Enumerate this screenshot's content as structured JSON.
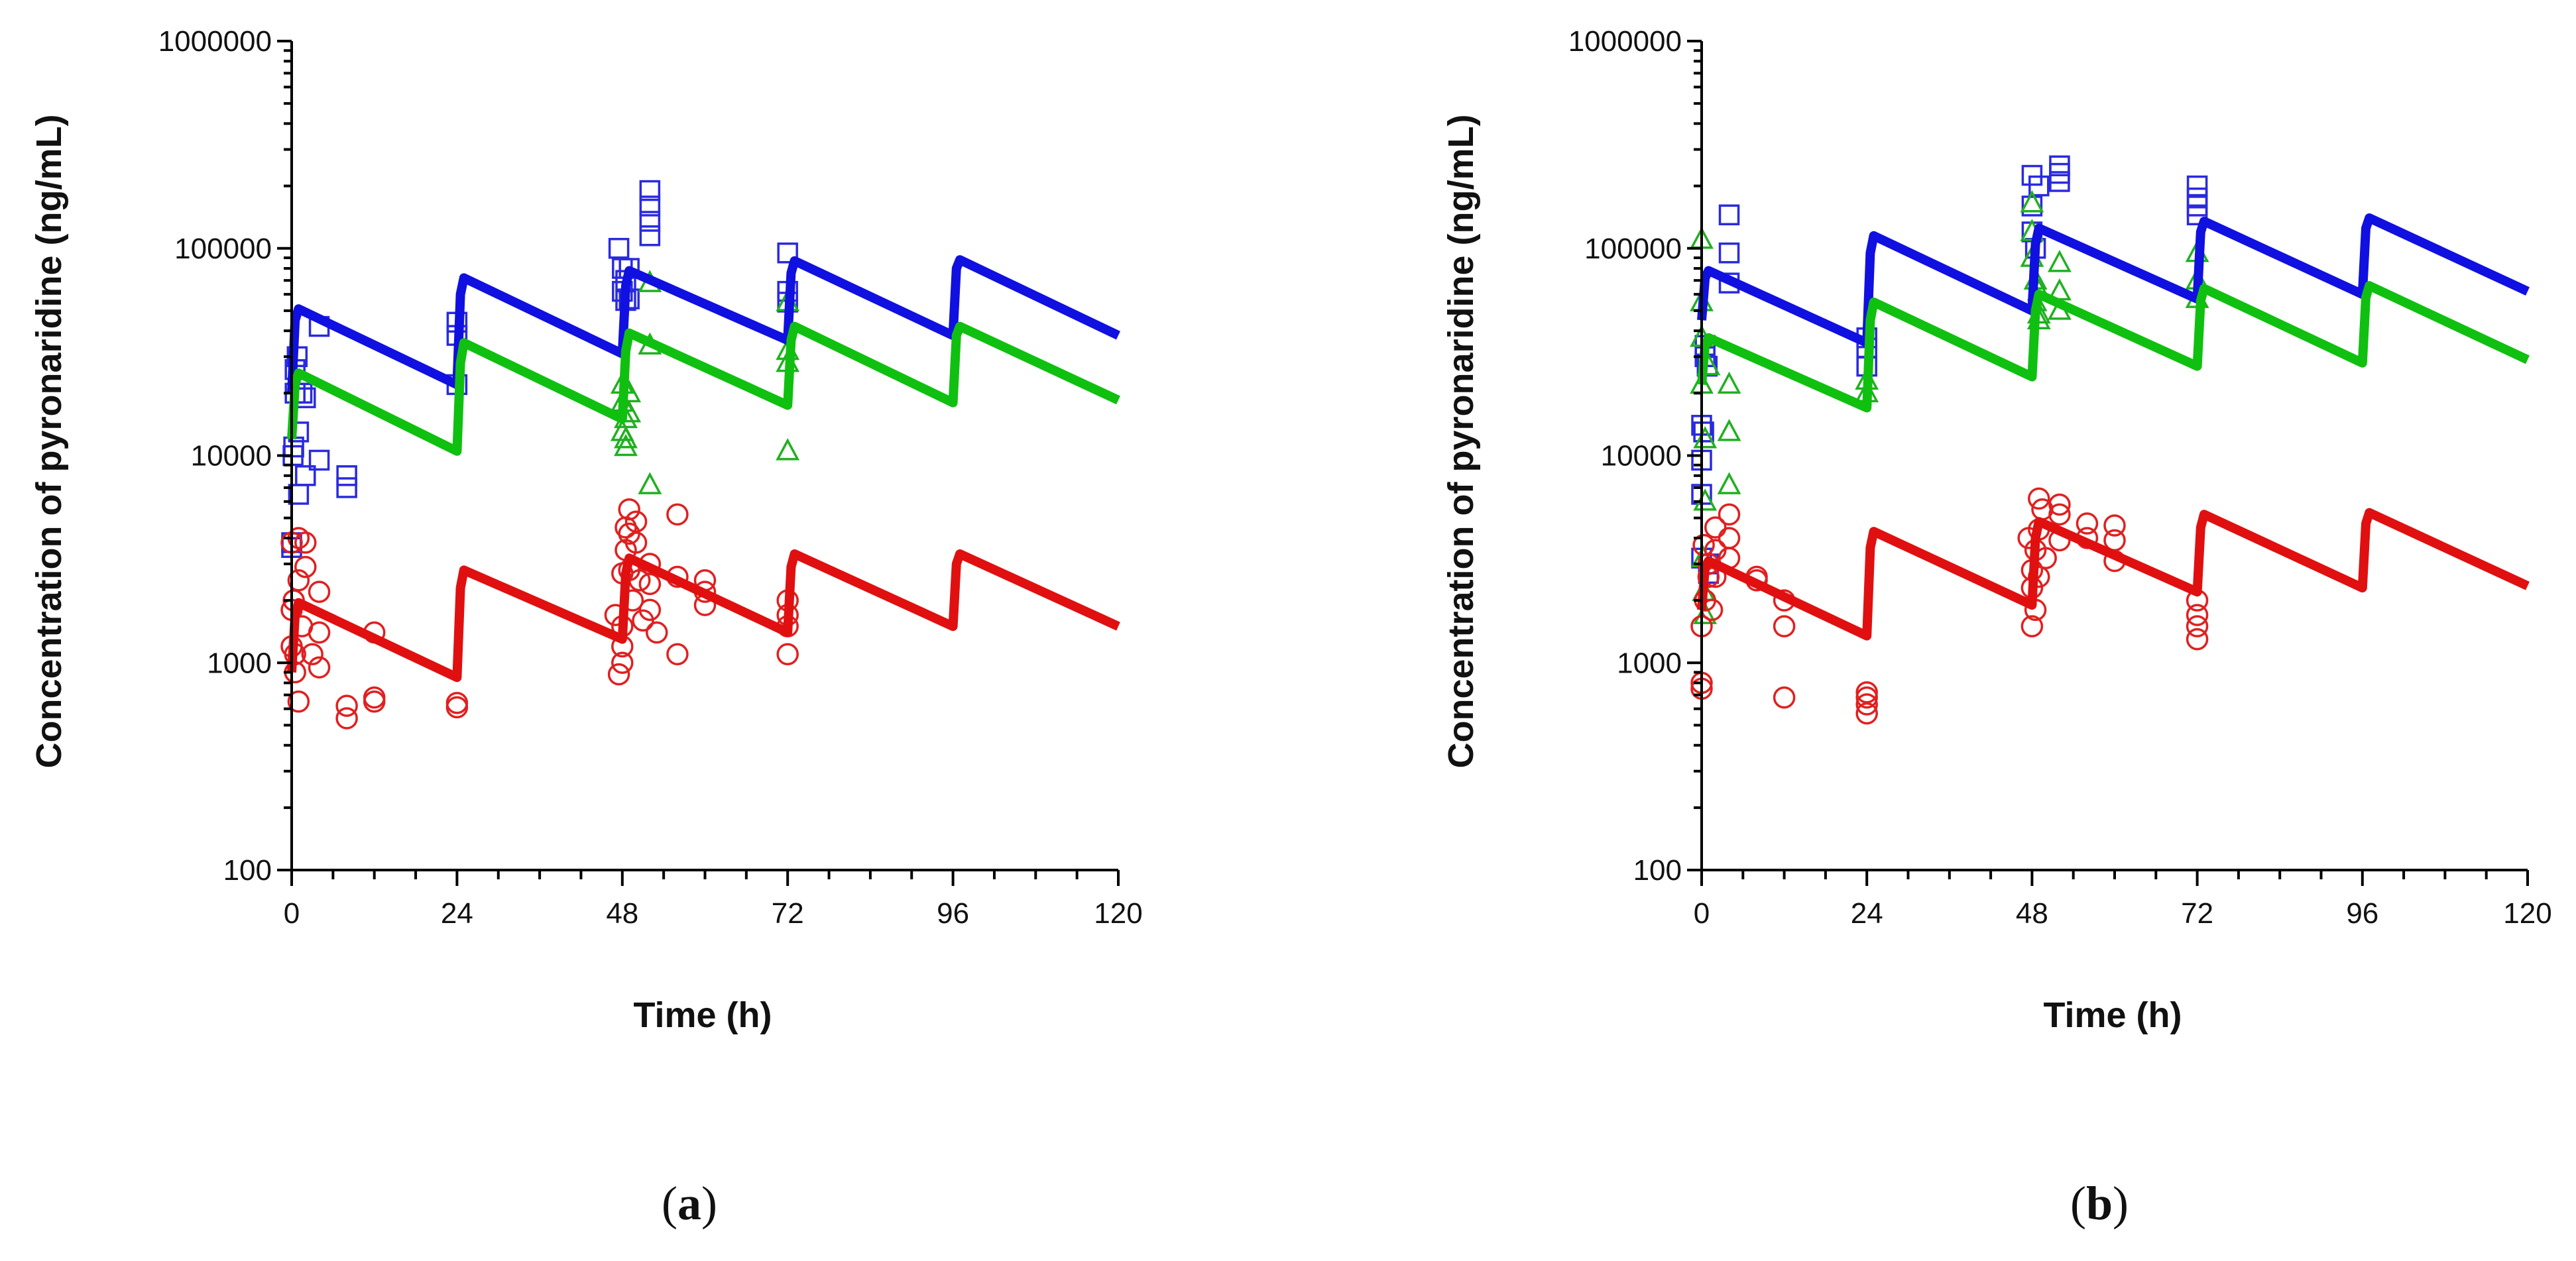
{
  "chart_data": [
    {
      "type": "line",
      "panel_label": "a",
      "xlabel": "Time (h)",
      "ylabel": "Concentration of pyronaridine (ng/mL)",
      "xlim": [
        0,
        120
      ],
      "ylim": [
        100,
        1000000
      ],
      "yscale": "log",
      "x_ticks": [
        0,
        24,
        48,
        72,
        96,
        120
      ],
      "x_tick_labels": [
        "0",
        "24",
        "48",
        "72",
        "96",
        "120"
      ],
      "x_minor_ticks": [
        6,
        12,
        18,
        30,
        36,
        42,
        54,
        60,
        66,
        78,
        84,
        90,
        102,
        108,
        114
      ],
      "y_ticks": [
        100,
        1000,
        10000,
        100000,
        1000000
      ],
      "y_tick_labels": [
        "100",
        "1000",
        "10000",
        "100000",
        "1000000"
      ],
      "series": [
        {
          "name": "upper",
          "kind": "line",
          "color": "#1010e0",
          "x": [
            0,
            0.5,
            1,
            24,
            24.5,
            25,
            48,
            48.5,
            49,
            72,
            72.5,
            73,
            96,
            96.5,
            97,
            120
          ],
          "y": [
            20000,
            45000,
            51000,
            22000,
            60000,
            72000,
            31000,
            66000,
            78000,
            36000,
            76000,
            87000,
            38000,
            80000,
            88000,
            38000
          ]
        },
        {
          "name": "middle",
          "kind": "line",
          "color": "#10c010",
          "x": [
            0,
            0.5,
            1,
            24,
            24.5,
            25,
            48,
            48.5,
            49,
            72,
            72.5,
            73,
            96,
            96.5,
            97,
            120
          ],
          "y": [
            12000,
            22000,
            25000,
            10500,
            28000,
            35000,
            15000,
            32000,
            39000,
            17500,
            36000,
            42000,
            18000,
            38000,
            42000,
            18500
          ]
        },
        {
          "name": "lower",
          "kind": "line",
          "color": "#e01010",
          "x": [
            0,
            0.5,
            1,
            24,
            24.5,
            25,
            48,
            48.5,
            49,
            72,
            72.5,
            73,
            96,
            96.5,
            97,
            120
          ],
          "y": [
            900,
            1700,
            1950,
            850,
            2300,
            2800,
            1300,
            2700,
            3200,
            1400,
            2900,
            3350,
            1500,
            3000,
            3350,
            1500
          ]
        },
        {
          "name": "upper-observed",
          "kind": "square",
          "color": "#2a2ae0",
          "x": [
            0,
            0,
            0.2,
            0.3,
            0.5,
            0.5,
            0.8,
            1,
            1,
            1.5,
            2,
            2,
            4,
            4,
            8,
            8,
            24,
            24,
            24,
            47.5,
            48,
            48,
            48.5,
            48.5,
            49,
            49,
            52,
            52,
            52,
            52,
            72,
            72,
            72
          ],
          "y": [
            3800,
            3600,
            10000,
            11000,
            20000,
            26000,
            30000,
            6500,
            13000,
            20000,
            19000,
            8000,
            42000,
            9500,
            8000,
            7000,
            22000,
            38000,
            44000,
            100000,
            80000,
            62000,
            56000,
            70000,
            80000,
            57000,
            190000,
            160000,
            135000,
            115000,
            95000,
            62000,
            55000
          ]
        },
        {
          "name": "middle-observed",
          "kind": "triangle",
          "color": "#20b020",
          "x": [
            48,
            48,
            48,
            48.5,
            48.5,
            48.5,
            49,
            49,
            52,
            52,
            52,
            72,
            72,
            72,
            72
          ],
          "y": [
            22000,
            18000,
            13000,
            12000,
            15000,
            11000,
            20000,
            16000,
            68000,
            34000,
            7200,
            55000,
            32000,
            28000,
            10500
          ]
        },
        {
          "name": "lower-observed",
          "kind": "circle",
          "color": "#e02020",
          "x": [
            0,
            0,
            0,
            0.3,
            0.5,
            0.5,
            1,
            1,
            1,
            1.5,
            2,
            2,
            3,
            4,
            4,
            4,
            8,
            8,
            12,
            12,
            12,
            24,
            24,
            47,
            47.5,
            48,
            48,
            48,
            48,
            48.5,
            48.5,
            49,
            49,
            49,
            49.5,
            50,
            50,
            50.5,
            51,
            52,
            52,
            52,
            53,
            56,
            56,
            56,
            60,
            60,
            60,
            72,
            72,
            72,
            72
          ],
          "y": [
            3800,
            1800,
            1200,
            2000,
            1100,
            900,
            650,
            4000,
            2500,
            1500,
            3800,
            2900,
            1100,
            2200,
            1400,
            950,
            620,
            540,
            1400,
            680,
            650,
            640,
            610,
            1700,
            880,
            1500,
            1200,
            1000,
            2700,
            4500,
            3500,
            5500,
            4200,
            2800,
            2000,
            4800,
            3800,
            2500,
            1600,
            3000,
            2400,
            1800,
            1400,
            5200,
            2600,
            1100,
            2500,
            2200,
            1900,
            2000,
            1700,
            1500,
            1100
          ]
        }
      ]
    },
    {
      "type": "line",
      "panel_label": "b",
      "xlabel": "Time (h)",
      "ylabel": "Concentration of pyronaridine (ng/mL)",
      "xlim": [
        0,
        120
      ],
      "ylim": [
        100,
        1000000
      ],
      "yscale": "log",
      "x_ticks": [
        0,
        24,
        48,
        72,
        96,
        120
      ],
      "x_tick_labels": [
        "0",
        "24",
        "48",
        "72",
        "96",
        "120"
      ],
      "x_minor_ticks": [
        6,
        12,
        18,
        30,
        36,
        42,
        54,
        60,
        66,
        78,
        84,
        90,
        102,
        108,
        114
      ],
      "y_ticks": [
        100,
        1000,
        10000,
        100000,
        1000000
      ],
      "y_tick_labels": [
        "100",
        "1000",
        "10000",
        "100000",
        "1000000"
      ],
      "series": [
        {
          "name": "upper",
          "kind": "line",
          "color": "#1010e0",
          "x": [
            0,
            0.5,
            1,
            24,
            24.5,
            25,
            48,
            48.5,
            49,
            72,
            72.5,
            73,
            96,
            96.5,
            97,
            120
          ],
          "y": [
            45000,
            72000,
            78000,
            35000,
            95000,
            115000,
            50000,
            105000,
            125000,
            57000,
            120000,
            135000,
            60000,
            125000,
            140000,
            62000
          ]
        },
        {
          "name": "middle",
          "kind": "line",
          "color": "#10c010",
          "x": [
            0,
            0.5,
            1,
            24,
            24.5,
            25,
            48,
            48.5,
            49,
            72,
            72.5,
            73,
            96,
            96.5,
            97,
            120
          ],
          "y": [
            22000,
            34000,
            37000,
            17000,
            45000,
            55000,
            24000,
            50000,
            60000,
            27000,
            56000,
            64000,
            28000,
            58000,
            66000,
            29000
          ]
        },
        {
          "name": "lower",
          "kind": "line",
          "color": "#e01010",
          "x": [
            0,
            0.5,
            1,
            24,
            24.5,
            25,
            48,
            48.5,
            49,
            72,
            72.5,
            73,
            96,
            96.5,
            97,
            120
          ],
          "y": [
            1800,
            2900,
            3100,
            1350,
            3600,
            4300,
            1900,
            4000,
            4800,
            2200,
            4500,
            5200,
            2300,
            4700,
            5300,
            2350
          ]
        },
        {
          "name": "upper-observed",
          "kind": "square",
          "color": "#2a2ae0",
          "x": [
            0,
            0,
            0,
            0,
            0.3,
            0.5,
            0.5,
            0.8,
            1,
            1,
            4,
            4,
            4,
            24,
            24,
            24,
            48,
            48,
            48,
            48.5,
            49,
            52,
            52,
            52,
            72,
            72,
            72,
            72
          ],
          "y": [
            14000,
            9500,
            6500,
            3200,
            13000,
            30000,
            34000,
            27000,
            3000,
            2700,
            145000,
            95000,
            68000,
            37000,
            33000,
            27000,
            225000,
            160000,
            120000,
            100000,
            200000,
            250000,
            230000,
            210000,
            200000,
            175000,
            160000,
            145000
          ]
        },
        {
          "name": "middle-observed",
          "kind": "triangle",
          "color": "#20b020",
          "x": [
            0,
            0,
            0,
            0,
            0.2,
            0.3,
            0.5,
            0.5,
            0.5,
            1,
            4,
            4,
            4,
            24,
            24,
            48,
            48,
            48,
            48.5,
            48.5,
            49,
            49,
            49,
            52,
            52,
            52,
            72,
            72,
            72
          ],
          "y": [
            110000,
            55000,
            37000,
            22000,
            3200,
            2200,
            1700,
            6000,
            12000,
            27000,
            22000,
            13000,
            7200,
            23000,
            20000,
            165000,
            120000,
            90000,
            70000,
            55000,
            62000,
            48000,
            45000,
            85000,
            62000,
            50000,
            95000,
            70000,
            57000
          ]
        },
        {
          "name": "lower-observed",
          "kind": "circle",
          "color": "#e02020",
          "x": [
            0,
            0,
            0,
            0.3,
            0.5,
            1,
            1,
            1.5,
            2,
            2,
            2,
            4,
            4,
            4,
            8,
            8,
            12,
            12,
            12,
            24,
            24,
            24,
            24,
            47.5,
            48,
            48,
            48,
            48.5,
            48.5,
            49,
            49,
            49,
            49.5,
            50,
            52,
            52,
            52,
            56,
            56,
            60,
            60,
            60,
            72,
            72,
            72,
            72
          ],
          "y": [
            800,
            750,
            1500,
            3700,
            2000,
            2600,
            3000,
            1800,
            4500,
            3500,
            2600,
            5200,
            4000,
            3200,
            2600,
            2500,
            2000,
            1500,
            680,
            720,
            680,
            630,
            570,
            4000,
            2800,
            2300,
            1500,
            1800,
            3500,
            6200,
            4400,
            2600,
            5500,
            3200,
            5800,
            5200,
            3900,
            4700,
            4000,
            4600,
            3900,
            3100,
            2000,
            1700,
            1500,
            1300
          ]
        }
      ]
    }
  ]
}
